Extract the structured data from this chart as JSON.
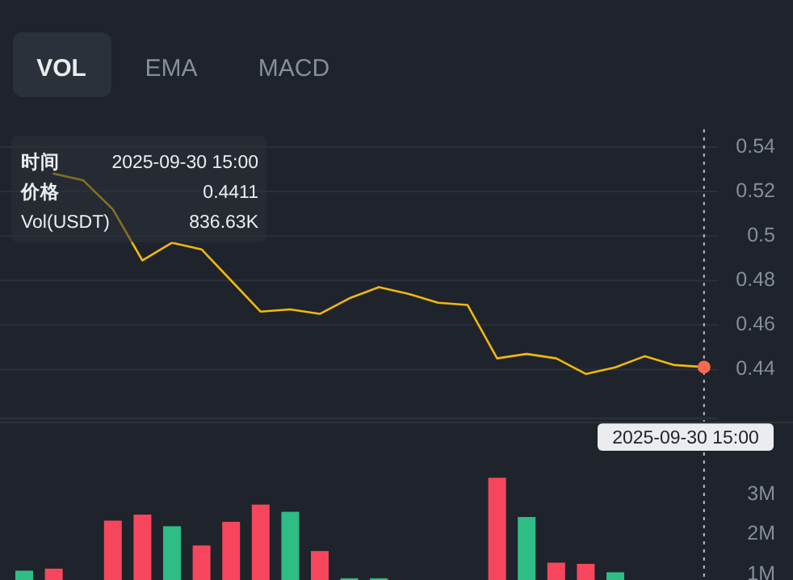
{
  "chart_data": [
    {
      "type": "line",
      "categories": [
        null,
        null,
        null,
        null,
        null,
        null,
        null,
        null,
        null,
        null,
        null,
        null,
        null,
        null,
        null,
        null,
        null,
        null,
        null,
        null,
        null,
        null,
        null,
        null
      ],
      "series": [
        {
          "color": "#f0b90b",
          "values": [
            null,
            0.528,
            0.525,
            0.512,
            0.489,
            0.497,
            0.494,
            0.48,
            0.466,
            0.467,
            0.465,
            0.472,
            0.477,
            0.474,
            0.47,
            0.469,
            0.445,
            0.447,
            0.445,
            0.438,
            0.441,
            0.446,
            0.442,
            0.4411
          ]
        }
      ],
      "ylim": [
        0.418,
        0.548
      ],
      "yticks": [
        0.44,
        0.46,
        0.48,
        0.5,
        0.52,
        0.54
      ],
      "tick_labels": "y",
      "grid": "y",
      "annotations": [
        "VOL",
        "EMA",
        "MACD",
        "时间",
        "2025-09-30 15:00",
        "价格",
        "0.4411",
        "Vol(USDT)",
        "836.63K",
        "2025-09-30 15:00"
      ]
    },
    {
      "type": "bar",
      "categories": [
        null,
        null,
        null,
        null,
        null,
        null,
        null,
        null,
        null,
        null,
        null,
        null,
        null,
        null,
        null,
        null,
        null,
        null,
        null,
        null,
        null,
        null,
        null,
        null
      ],
      "values": [
        1100000,
        1150000,
        null,
        2350000,
        2500000,
        2210000,
        1730000,
        2320000,
        2750000,
        2570000,
        1590000,
        910000,
        910000,
        null,
        null,
        null,
        3420000,
        2440000,
        1300000,
        1270000,
        1060000,
        null,
        null,
        null
      ],
      "colors": [
        "#2ebd85",
        "#f6465d",
        null,
        "#f6465d",
        "#f6465d",
        "#2ebd85",
        "#f6465d",
        "#f6465d",
        "#f6465d",
        "#2ebd85",
        "#f6465d",
        "#2ebd85",
        "#2ebd85",
        null,
        null,
        null,
        "#f6465d",
        "#2ebd85",
        "#f6465d",
        "#f6465d",
        "#2ebd85",
        null,
        null,
        null
      ],
      "ylim": [
        867000,
        4800000
      ],
      "yticks": [
        {
          "value": 1000000,
          "label": "1M"
        },
        {
          "value": 2000000,
          "label": "2M"
        },
        {
          "value": 3000000,
          "label": "3M"
        }
      ],
      "tick_labels": "y"
    }
  ]
}
